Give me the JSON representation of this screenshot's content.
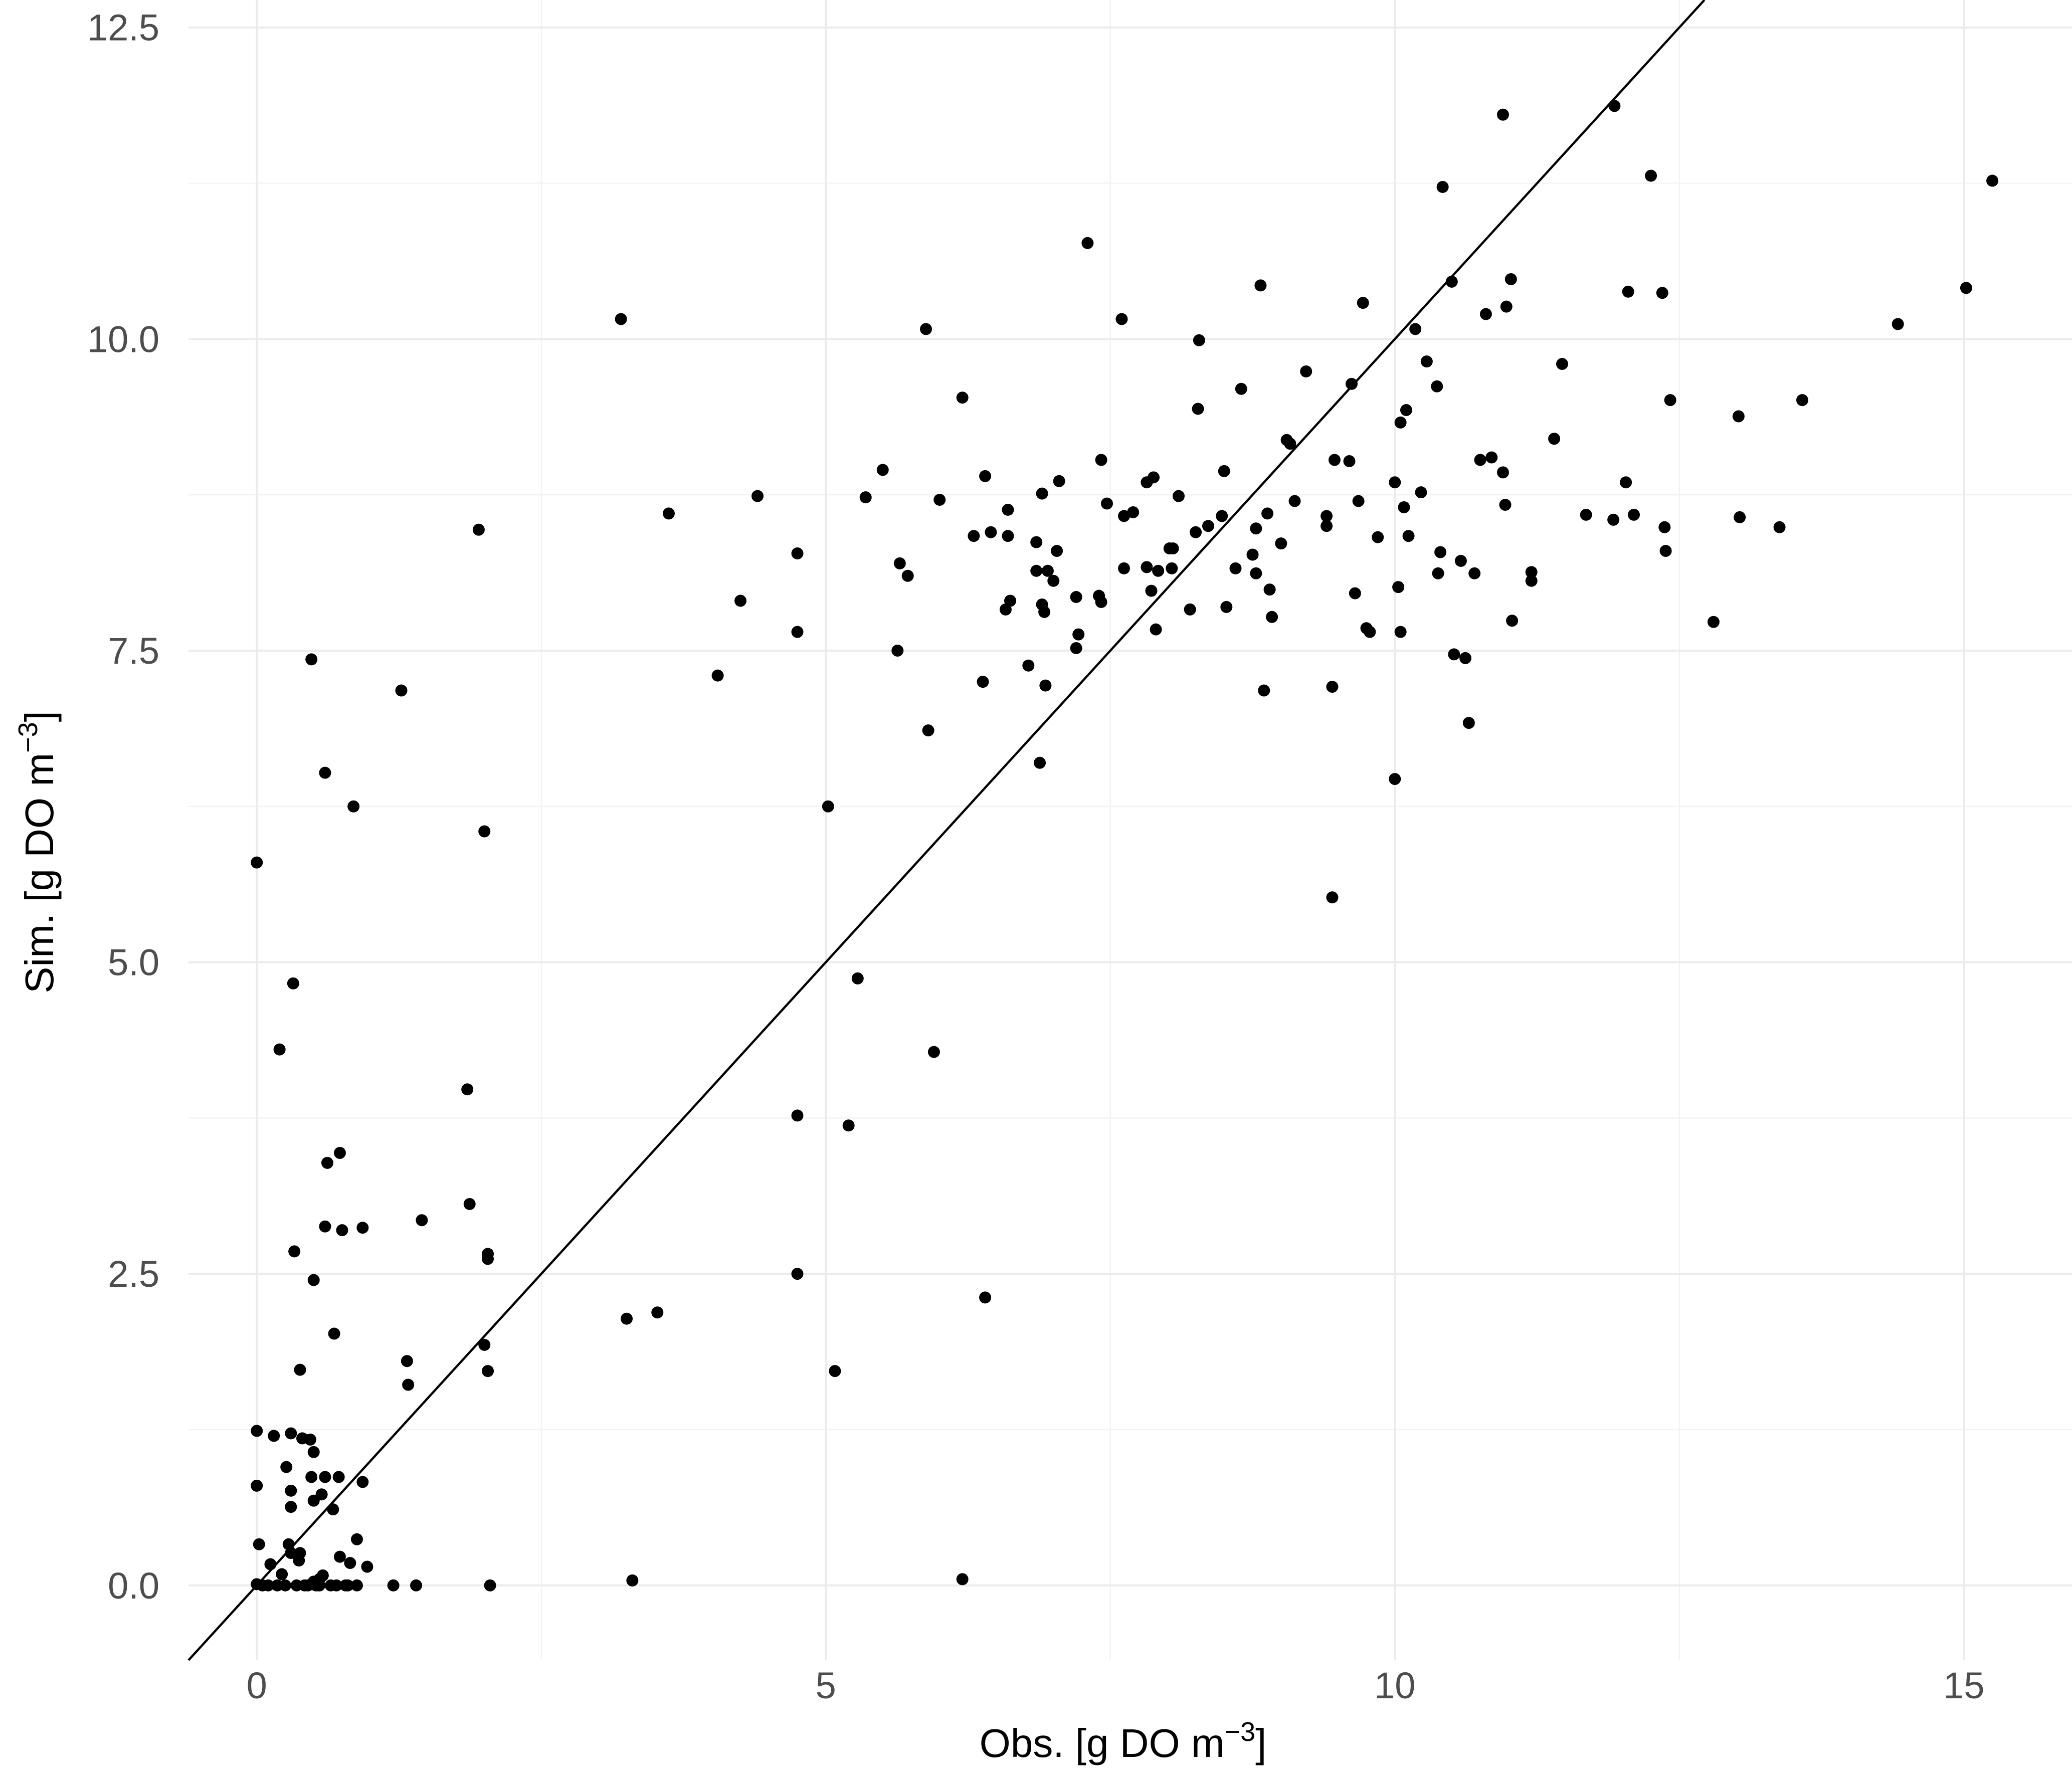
{
  "chart_data": {
    "type": "scatter",
    "xlabel_main": "Obs. [g DO m",
    "xlabel_sup": "−3",
    "xlabel_end": "]",
    "ylabel_main": "Sim. [g DO m",
    "ylabel_sup": "−3",
    "ylabel_end": "]",
    "xlim": [
      -0.6,
      15.95
    ],
    "ylim": [
      -0.6,
      12.72
    ],
    "x_ticks": [
      0,
      5,
      10,
      15
    ],
    "x_tick_labels": [
      "0",
      "5",
      "10",
      "15"
    ],
    "y_ticks": [
      0,
      2.5,
      5,
      7.5,
      10,
      12.5
    ],
    "y_tick_labels": [
      "0.0",
      "2.5",
      "5.0",
      "7.5",
      "10.0",
      "12.5"
    ],
    "grid": true,
    "reference_line": {
      "slope": 1,
      "intercept": 0
    },
    "points": [
      [
        0,
        5.8
      ],
      [
        0,
        1.24
      ],
      [
        0,
        0.8
      ],
      [
        0,
        0.01
      ],
      [
        0.02,
        0.33
      ],
      [
        0.05,
        0
      ],
      [
        0.1,
        0
      ],
      [
        0.12,
        0.17
      ],
      [
        0.15,
        1.2
      ],
      [
        0.18,
        0
      ],
      [
        0.2,
        4.3
      ],
      [
        0.22,
        0.09
      ],
      [
        0.25,
        0
      ],
      [
        0.26,
        0.95
      ],
      [
        0.28,
        0.33
      ],
      [
        0.3,
        1.22
      ],
      [
        0.3,
        0.63
      ],
      [
        0.3,
        0.76
      ],
      [
        0.3,
        0.26
      ],
      [
        0.32,
        4.83
      ],
      [
        0.33,
        2.68
      ],
      [
        0.35,
        0
      ],
      [
        0.37,
        0.2
      ],
      [
        0.38,
        0.26
      ],
      [
        0.38,
        1.73
      ],
      [
        0.4,
        1.18
      ],
      [
        0.42,
        0
      ],
      [
        0.45,
        0
      ],
      [
        0.47,
        1.17
      ],
      [
        0.48,
        7.43
      ],
      [
        0.48,
        0.87
      ],
      [
        0.5,
        0.03
      ],
      [
        0.5,
        1.07
      ],
      [
        0.5,
        2.45
      ],
      [
        0.5,
        0.68
      ],
      [
        0.52,
        0
      ],
      [
        0.55,
        0.05
      ],
      [
        0.55,
        0
      ],
      [
        0.57,
        0.73
      ],
      [
        0.58,
        0.08
      ],
      [
        0.6,
        0.87
      ],
      [
        0.6,
        6.52
      ],
      [
        0.62,
        3.39
      ],
      [
        0.6,
        2.88
      ],
      [
        0.65,
        0
      ],
      [
        0.67,
        0.61
      ],
      [
        0.68,
        2.02
      ],
      [
        0.7,
        0
      ],
      [
        0.72,
        0.87
      ],
      [
        0.73,
        3.47
      ],
      [
        0.73,
        0.23
      ],
      [
        0.75,
        2.85
      ],
      [
        0.78,
        0
      ],
      [
        0.8,
        0
      ],
      [
        0.82,
        0.18
      ],
      [
        0.85,
        6.25
      ],
      [
        0.88,
        0
      ],
      [
        0.88,
        0.37
      ],
      [
        0.93,
        2.87
      ],
      [
        0.93,
        0.83
      ],
      [
        0.97,
        0.15
      ],
      [
        1.2,
        0
      ],
      [
        1.27,
        7.18
      ],
      [
        1.32,
        1.8
      ],
      [
        1.33,
        1.61
      ],
      [
        1.4,
        0
      ],
      [
        1.45,
        2.93
      ],
      [
        1.85,
        3.98
      ],
      [
        1.87,
        3.06
      ],
      [
        1.95,
        8.47
      ],
      [
        2,
        6.05
      ],
      [
        2,
        1.93
      ],
      [
        2.03,
        2.66
      ],
      [
        2.03,
        2.62
      ],
      [
        2.03,
        1.72
      ],
      [
        2.05,
        0
      ],
      [
        3.2,
        10.16
      ],
      [
        3.25,
        2.14
      ],
      [
        3.3,
        0.04
      ],
      [
        3.52,
        2.19
      ],
      [
        3.62,
        8.6
      ],
      [
        4.05,
        7.3
      ],
      [
        4.25,
        7.9
      ],
      [
        4.4,
        8.74
      ],
      [
        4.75,
        8.28
      ],
      [
        4.75,
        7.65
      ],
      [
        4.75,
        3.77
      ],
      [
        4.75,
        2.5
      ],
      [
        5.02,
        6.25
      ],
      [
        5.08,
        1.72
      ],
      [
        5.2,
        3.69
      ],
      [
        5.28,
        4.87
      ],
      [
        5.35,
        8.73
      ],
      [
        5.5,
        8.95
      ],
      [
        5.63,
        7.5
      ],
      [
        5.65,
        8.2
      ],
      [
        5.72,
        8.1
      ],
      [
        5.88,
        10.08
      ],
      [
        5.9,
        6.86
      ],
      [
        5.95,
        4.28
      ],
      [
        6,
        8.71
      ],
      [
        6.2,
        9.53
      ],
      [
        6.2,
        0.05
      ],
      [
        6.3,
        8.42
      ],
      [
        6.38,
        7.25
      ],
      [
        6.4,
        8.9
      ],
      [
        6.4,
        2.31
      ],
      [
        6.45,
        8.45
      ],
      [
        6.58,
        7.83
      ],
      [
        6.6,
        8.42
      ],
      [
        6.6,
        8.63
      ],
      [
        6.62,
        7.9
      ],
      [
        6.78,
        7.38
      ],
      [
        6.85,
        8.37
      ],
      [
        6.85,
        8.14
      ],
      [
        6.88,
        6.6
      ],
      [
        6.9,
        7.87
      ],
      [
        6.9,
        8.76
      ],
      [
        6.92,
        7.81
      ],
      [
        6.93,
        7.22
      ],
      [
        6.95,
        8.14
      ],
      [
        7,
        8.06
      ],
      [
        7.03,
        8.3
      ],
      [
        7.05,
        8.86
      ],
      [
        7.2,
        7.93
      ],
      [
        7.2,
        7.52
      ],
      [
        7.22,
        7.63
      ],
      [
        7.3,
        10.77
      ],
      [
        7.4,
        7.94
      ],
      [
        7.42,
        9.03
      ],
      [
        7.42,
        7.89
      ],
      [
        7.47,
        8.68
      ],
      [
        7.6,
        10.16
      ],
      [
        7.62,
        8.16
      ],
      [
        7.62,
        8.58
      ],
      [
        7.7,
        8.61
      ],
      [
        7.82,
        8.17
      ],
      [
        7.82,
        8.85
      ],
      [
        7.86,
        7.98
      ],
      [
        7.88,
        8.89
      ],
      [
        7.9,
        7.67
      ],
      [
        7.92,
        8.14
      ],
      [
        8.02,
        8.32
      ],
      [
        8.04,
        8.16
      ],
      [
        8.05,
        8.32
      ],
      [
        8.1,
        8.74
      ],
      [
        8.2,
        7.83
      ],
      [
        8.25,
        8.45
      ],
      [
        8.27,
        9.44
      ],
      [
        8.28,
        9.99
      ],
      [
        8.36,
        8.5
      ],
      [
        8.48,
        8.58
      ],
      [
        8.5,
        8.94
      ],
      [
        8.52,
        7.85
      ],
      [
        8.6,
        8.16
      ],
      [
        8.65,
        9.6
      ],
      [
        8.75,
        8.27
      ],
      [
        8.78,
        8.48
      ],
      [
        8.78,
        8.12
      ],
      [
        8.82,
        10.43
      ],
      [
        8.85,
        7.18
      ],
      [
        8.88,
        8.6
      ],
      [
        8.9,
        7.99
      ],
      [
        8.92,
        7.77
      ],
      [
        9,
        8.36
      ],
      [
        9.05,
        9.19
      ],
      [
        9.08,
        9.16
      ],
      [
        9.12,
        8.7
      ],
      [
        9.22,
        9.74
      ],
      [
        9.4,
        8.58
      ],
      [
        9.4,
        8.5
      ],
      [
        9.45,
        7.21
      ],
      [
        9.45,
        5.52
      ],
      [
        9.47,
        9.03
      ],
      [
        9.6,
        9.02
      ],
      [
        9.62,
        9.64
      ],
      [
        9.65,
        7.96
      ],
      [
        9.68,
        8.7
      ],
      [
        9.72,
        10.29
      ],
      [
        9.75,
        7.68
      ],
      [
        9.78,
        7.65
      ],
      [
        9.85,
        8.41
      ],
      [
        10,
        8.85
      ],
      [
        10,
        6.47
      ],
      [
        10.03,
        8.01
      ],
      [
        10.05,
        9.33
      ],
      [
        10.05,
        7.65
      ],
      [
        10.08,
        8.65
      ],
      [
        10.1,
        9.43
      ],
      [
        10.12,
        8.42
      ],
      [
        10.18,
        10.08
      ],
      [
        10.23,
        8.77
      ],
      [
        10.28,
        9.82
      ],
      [
        10.37,
        9.62
      ],
      [
        10.38,
        8.12
      ],
      [
        10.4,
        8.29
      ],
      [
        10.42,
        11.22
      ],
      [
        10.5,
        10.46
      ],
      [
        10.52,
        7.47
      ],
      [
        10.58,
        8.22
      ],
      [
        10.62,
        7.44
      ],
      [
        10.65,
        6.92
      ],
      [
        10.7,
        8.12
      ],
      [
        10.75,
        9.03
      ],
      [
        10.8,
        10.2
      ],
      [
        10.85,
        9.05
      ],
      [
        10.95,
        8.93
      ],
      [
        10.95,
        11.8
      ],
      [
        10.97,
        8.67
      ],
      [
        10.98,
        10.26
      ],
      [
        11.02,
        10.48
      ],
      [
        11.03,
        7.74
      ],
      [
        11.2,
        8.06
      ],
      [
        11.2,
        8.13
      ],
      [
        11.4,
        9.2
      ],
      [
        11.47,
        9.8
      ],
      [
        11.68,
        8.59
      ],
      [
        11.92,
        8.55
      ],
      [
        11.93,
        11.87
      ],
      [
        12.03,
        8.85
      ],
      [
        12.05,
        10.38
      ],
      [
        12.1,
        8.59
      ],
      [
        12.25,
        11.31
      ],
      [
        12.35,
        10.37
      ],
      [
        12.37,
        8.49
      ],
      [
        12.38,
        8.3
      ],
      [
        12.42,
        9.51
      ],
      [
        12.8,
        7.73
      ],
      [
        13.02,
        9.38
      ],
      [
        13.03,
        8.57
      ],
      [
        13.38,
        8.49
      ],
      [
        13.58,
        9.51
      ],
      [
        14.42,
        10.12
      ],
      [
        15.02,
        10.41
      ],
      [
        15.25,
        11.27
      ]
    ]
  }
}
